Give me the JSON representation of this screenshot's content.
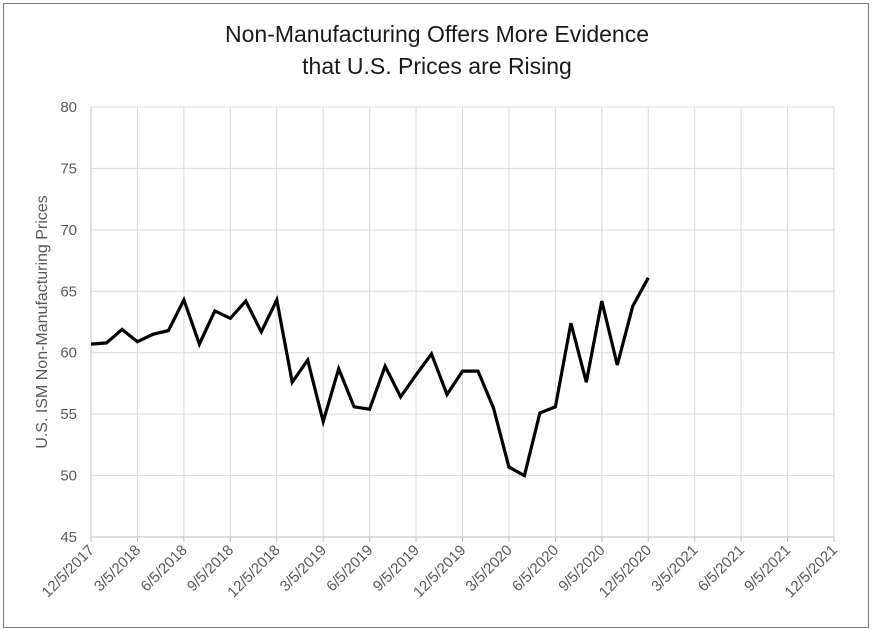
{
  "chart_data": {
    "type": "line",
    "title_line1": "Non-Manufacturing Offers More Evidence",
    "title_line2": "that U.S. Prices are Rising",
    "ylabel": "U.S. ISM Non-Manufacturing Prices",
    "xlabel": "",
    "ylim": [
      45,
      80
    ],
    "yticks": [
      45,
      50,
      55,
      60,
      65,
      70,
      75,
      80
    ],
    "grid": true,
    "x_tick_labels": [
      "12/5/2017",
      "3/5/2018",
      "6/5/2018",
      "9/5/2018",
      "12/5/2018",
      "3/5/2019",
      "6/5/2019",
      "9/5/2019",
      "12/5/2019",
      "3/5/2020",
      "6/5/2020",
      "9/5/2020",
      "12/5/2020",
      "3/5/2021",
      "6/5/2021",
      "9/5/2021",
      "12/5/2021"
    ],
    "series": [
      {
        "name": "",
        "color": "#000000",
        "x": [
          "2017-12",
          "2018-01",
          "2018-02",
          "2018-03",
          "2018-04",
          "2018-05",
          "2018-06",
          "2018-07",
          "2018-08",
          "2018-09",
          "2018-10",
          "2018-11",
          "2018-12",
          "2019-01",
          "2019-02",
          "2019-03",
          "2019-04",
          "2019-05",
          "2019-06",
          "2019-07",
          "2019-08",
          "2019-09",
          "2019-10",
          "2019-11",
          "2019-12",
          "2020-01",
          "2020-02",
          "2020-03",
          "2020-04",
          "2020-05",
          "2020-06",
          "2020-07",
          "2020-08",
          "2020-09",
          "2020-10",
          "2020-11",
          "2020-12",
          "2021-01"
        ],
        "values": [
          60.7,
          60.8,
          61.9,
          60.9,
          61.5,
          61.8,
          64.3,
          60.7,
          63.4,
          62.8,
          64.2,
          61.7,
          64.3,
          57.6,
          59.4,
          54.4,
          58.7,
          55.6,
          55.4,
          58.9,
          56.4,
          58.2,
          59.9,
          56.6,
          58.5,
          58.5,
          55.5,
          50.7,
          50.0,
          55.1,
          55.6,
          62.4,
          57.6,
          64.2,
          59.0,
          63.8,
          66.1,
          null
        ]
      }
    ]
  }
}
